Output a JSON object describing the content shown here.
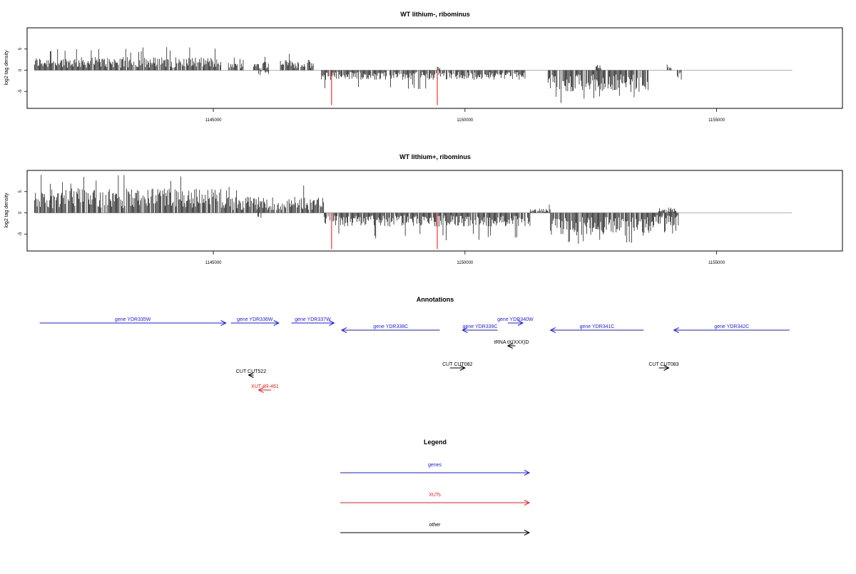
{
  "colors": {
    "signal": "#000000",
    "highlight": "#ff3030",
    "baseline": "#9a9a9a",
    "genes": "#1a1aee",
    "xuts": "#ee1a1a",
    "other": "#000000"
  },
  "chart_data": [
    {
      "type": "bar",
      "title": "WT lithium-, ribominus",
      "ylabel": "log2 tag density",
      "xlim": [
        1141300,
        1157500
      ],
      "ylim": [
        -9,
        10
      ],
      "x_ticks": [
        1145000,
        1150000,
        1155000
      ],
      "x_tick_labels": [
        "1145000",
        "1150000",
        "1155000"
      ],
      "y_ticks": [
        5,
        0,
        -5
      ],
      "y_tick_labels": [
        "5",
        "0",
        "-5"
      ],
      "grid": false,
      "highlight_x": [
        1147350,
        1149450
      ],
      "highlight_values": [
        -8.2,
        -8.2
      ],
      "segments": [
        {
          "x": [
            1141450,
            1145150
          ],
          "strand": "+",
          "max": 5.5,
          "mean": 2.3
        },
        {
          "x": [
            1145300,
            1145600
          ],
          "strand": "+",
          "max": 3.0,
          "mean": 1.3
        },
        {
          "x": [
            1145800,
            1146100
          ],
          "strand": "+",
          "max": 3.5,
          "mean": 1.6
        },
        {
          "x": [
            1145900,
            1146100
          ],
          "strand": "-",
          "max": 1.5,
          "mean": 0.7
        },
        {
          "x": [
            1146300,
            1147000
          ],
          "strand": "+",
          "max": 4.5,
          "mean": 1.8
        },
        {
          "x": [
            1147150,
            1151200
          ],
          "strand": "-",
          "max": 4.5,
          "mean": 1.7
        },
        {
          "x": [
            1149450,
            1149500
          ],
          "strand": "+",
          "max": 0.8,
          "mean": 0.6
        },
        {
          "x": [
            1151650,
            1153650
          ],
          "strand": "-",
          "max": 8.0,
          "mean": 3.8
        },
        {
          "x": [
            1152600,
            1152700
          ],
          "strand": "+",
          "max": 1.8,
          "mean": 1.2
        },
        {
          "x": [
            1154000,
            1154100
          ],
          "strand": "+",
          "max": 2.3,
          "mean": 1.2
        },
        {
          "x": [
            1154200,
            1154300
          ],
          "strand": "-",
          "max": 2.8,
          "mean": 1.5
        }
      ]
    },
    {
      "type": "bar",
      "title": "WT lithium+, ribominus",
      "ylabel": "log2 tag density",
      "xlim": [
        1141300,
        1157500
      ],
      "ylim": [
        -9,
        10
      ],
      "x_ticks": [
        1145000,
        1150000,
        1155000
      ],
      "x_tick_labels": [
        "1145000",
        "1150000",
        "1155000"
      ],
      "y_ticks": [
        5,
        0,
        -5
      ],
      "y_tick_labels": [
        "5",
        "0",
        "-5"
      ],
      "grid": false,
      "highlight_x": [
        1147350,
        1149450
      ],
      "highlight_values": [
        -8.5,
        -8.5
      ],
      "segments": [
        {
          "x": [
            1141450,
            1145150
          ],
          "strand": "+",
          "max": 9.0,
          "mean": 4.3
        },
        {
          "x": [
            1145150,
            1147200
          ],
          "strand": "+",
          "max": 6.5,
          "mean": 2.8
        },
        {
          "x": [
            1145850,
            1145950
          ],
          "strand": "-",
          "max": 2.0,
          "mean": 1.0
        },
        {
          "x": [
            1147200,
            1151300
          ],
          "strand": "-",
          "max": 6.5,
          "mean": 2.4
        },
        {
          "x": [
            1151300,
            1151700
          ],
          "strand": "+",
          "max": 2.0,
          "mean": 0.8
        },
        {
          "x": [
            1151700,
            1153750
          ],
          "strand": "-",
          "max": 8.5,
          "mean": 4.0
        },
        {
          "x": [
            1153750,
            1154250
          ],
          "strand": "-",
          "max": 5.0,
          "mean": 2.2
        },
        {
          "x": [
            1153850,
            1154200
          ],
          "strand": "+",
          "max": 1.5,
          "mean": 0.8
        }
      ]
    }
  ],
  "annotations": {
    "title": "Annotations",
    "features": [
      {
        "label": "gene YDR335W",
        "x1": 1141550,
        "x2": 1145250,
        "dir": "+",
        "row": 0,
        "category": "genes"
      },
      {
        "label": "gene YDR336W",
        "x1": 1145350,
        "x2": 1146300,
        "dir": "+",
        "row": 0,
        "category": "genes"
      },
      {
        "label": "gene YDR337W",
        "x1": 1146550,
        "x2": 1147400,
        "dir": "+",
        "row": 0,
        "category": "genes"
      },
      {
        "label": "gene YDR338C",
        "x1": 1147550,
        "x2": 1149500,
        "dir": "-",
        "row": 1,
        "category": "genes"
      },
      {
        "label": "gene YDR339C",
        "x1": 1149950,
        "x2": 1150650,
        "dir": "-",
        "row": 1,
        "category": "genes"
      },
      {
        "label": "gene YDR340W",
        "x1": 1150850,
        "x2": 1151150,
        "dir": "+",
        "row": 0,
        "category": "genes"
      },
      {
        "label": "gene YDR341C",
        "x1": 1151700,
        "x2": 1153550,
        "dir": "-",
        "row": 1,
        "category": "genes"
      },
      {
        "label": "gene YDR342C",
        "x1": 1154150,
        "x2": 1156450,
        "dir": "-",
        "row": 1,
        "category": "genes"
      },
      {
        "label": "tRNA tX(XXX)D",
        "x1": 1150850,
        "x2": 1151000,
        "dir": "-",
        "row": 2,
        "category": "other"
      },
      {
        "label": "CUT CUT522",
        "x1": 1145700,
        "x2": 1145800,
        "dir": "-",
        "row": 4,
        "category": "other"
      },
      {
        "label": "XUT 4R-461",
        "x1": 1145900,
        "x2": 1146150,
        "dir": "-",
        "row": 5,
        "category": "xuts"
      },
      {
        "label": "CUT CUT082",
        "x1": 1149700,
        "x2": 1150000,
        "dir": "+",
        "row": 3,
        "category": "other"
      },
      {
        "label": "CUT CUT083",
        "x1": 1153850,
        "x2": 1154050,
        "dir": "+",
        "row": 3,
        "category": "other"
      }
    ]
  },
  "legend": {
    "title": "Legend",
    "items": [
      {
        "label": "genes",
        "category": "genes"
      },
      {
        "label": "XUTs",
        "category": "xuts"
      },
      {
        "label": "other",
        "category": "other"
      }
    ]
  }
}
